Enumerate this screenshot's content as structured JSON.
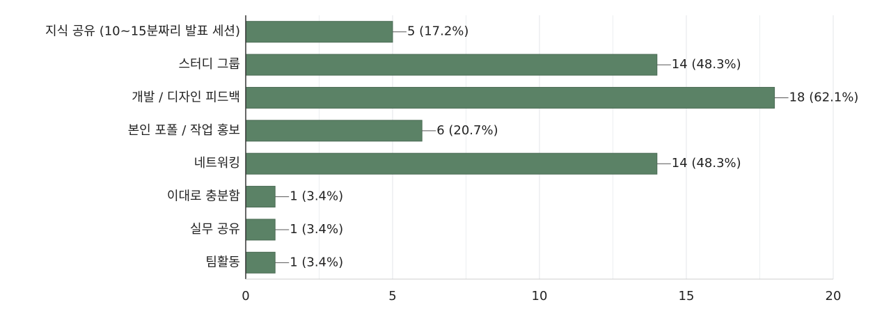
{
  "chart_data": {
    "type": "bar",
    "orientation": "horizontal",
    "categories": [
      "지식 공유 (10~15분짜리 발표 세션)",
      "스터디 그룹",
      "개발 / 디자인 피드백",
      "본인 포폴 / 작업 홍보",
      "네트워킹",
      "이대로 충분함",
      "실무 공유",
      "팀활동"
    ],
    "values": [
      5,
      14,
      18,
      6,
      14,
      1,
      1,
      1
    ],
    "value_labels": [
      "5 (17.2%)",
      "14 (48.3%)",
      "18 (62.1%)",
      "6 (20.7%)",
      "14 (48.3%)",
      "1 (3.4%)",
      "1 (3.4%)",
      "1 (3.4%)"
    ],
    "color": "#5b8266",
    "xlim": [
      0,
      20
    ],
    "xticks": [
      0,
      5,
      10,
      15,
      20
    ],
    "minor_xticks": [
      2.5,
      7.5,
      12.5,
      17.5
    ],
    "grid": true
  }
}
